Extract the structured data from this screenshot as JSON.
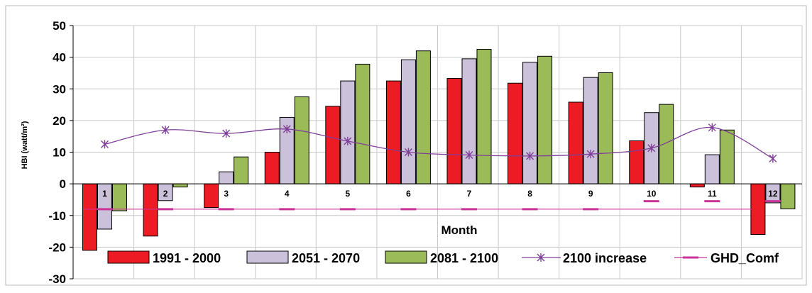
{
  "chart_data": {
    "type": "bar",
    "title": "",
    "xlabel": "Month",
    "ylabel": "HBI (watt/m²)",
    "ylim": [
      -30,
      50
    ],
    "yticks": [
      50,
      40,
      30,
      20,
      10,
      0,
      -10,
      -20,
      -30
    ],
    "categories": [
      "1",
      "2",
      "3",
      "4",
      "5",
      "6",
      "7",
      "8",
      "9",
      "10",
      "11",
      "12"
    ],
    "grid": true,
    "legend_position": "bottom",
    "series": [
      {
        "name": "1991 - 2000",
        "kind": "bar",
        "color": "#ed1c24",
        "values": [
          -21,
          -16.5,
          -7.5,
          10,
          24.5,
          32.5,
          33.3,
          31.8,
          25.8,
          13.6,
          -1,
          -16
        ]
      },
      {
        "name": "2051 - 2070",
        "kind": "bar",
        "color": "#ccc1da",
        "values": [
          -14.3,
          -5.3,
          3.8,
          21,
          32.5,
          39.2,
          39.5,
          38.4,
          33.6,
          22.5,
          9.2,
          -6
        ]
      },
      {
        "name": "2081 - 2100",
        "kind": "bar",
        "color": "#9bbb59",
        "values": [
          -8.5,
          -1,
          8.5,
          27.5,
          37.8,
          42,
          42.5,
          40.3,
          35.1,
          25.1,
          17,
          -7.9
        ]
      },
      {
        "name": "2100 increase",
        "kind": "line",
        "marker": "asterisk",
        "color": "#7f3f98",
        "values": [
          12.5,
          17,
          15.9,
          17.3,
          13.5,
          10,
          9.1,
          8.8,
          9.4,
          11.3,
          17.8,
          8
        ]
      },
      {
        "name": "GHD_Comf",
        "kind": "dash",
        "color": "#cc3399",
        "values": [
          -8,
          -8,
          -8,
          -8,
          -8,
          -8,
          -8,
          -8,
          -8,
          -5.5,
          -5.5,
          -5.5
        ]
      }
    ]
  }
}
